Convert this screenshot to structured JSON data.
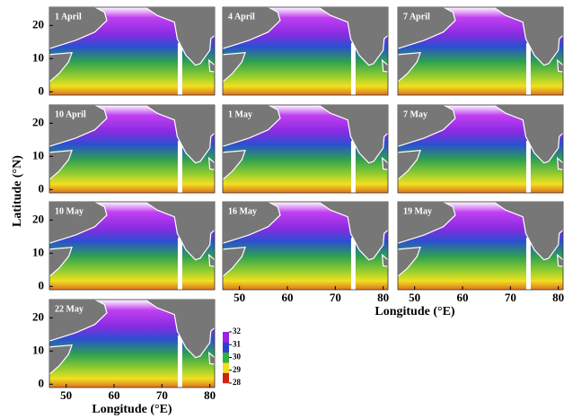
{
  "panels": [
    {
      "label": "1 April"
    },
    {
      "label": "4 April"
    },
    {
      "label": "7 April"
    },
    {
      "label": "10 April"
    },
    {
      "label": "1 May"
    },
    {
      "label": "7 May"
    },
    {
      "label": "10 May"
    },
    {
      "label": "16 May"
    },
    {
      "label": "19 May"
    },
    {
      "label": "22 May"
    }
  ],
  "x_axis": {
    "label": "Longitude (°E)",
    "lim": [
      46.5,
      81
    ],
    "ticks": [
      50,
      60,
      70,
      80
    ]
  },
  "y_axis": {
    "label": "Latitude (°N)",
    "lim": [
      -1,
      25.5
    ],
    "ticks": [
      0,
      10,
      20
    ]
  },
  "colorbar": {
    "lim": [
      28,
      32
    ],
    "ticks": [
      32,
      31,
      30,
      29,
      28
    ],
    "colors": [
      "#a020e0",
      "#2a40d0",
      "#30b040",
      "#f0e020",
      "#d02010"
    ]
  }
}
